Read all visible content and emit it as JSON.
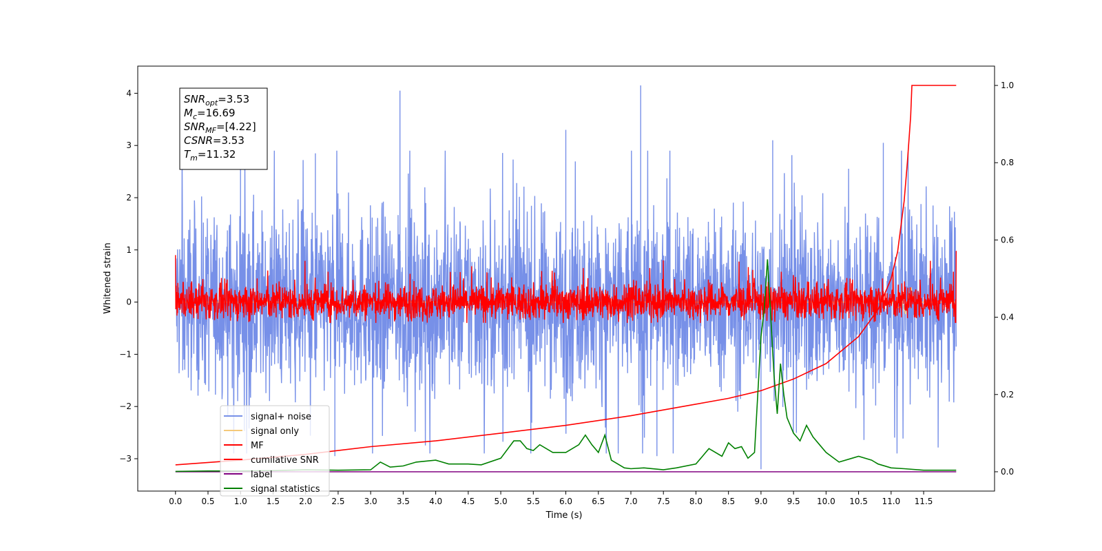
{
  "chart_data": {
    "type": "line",
    "xlabel": "Time (s)",
    "ylabel": "Whitened strain",
    "xlim": [
      -0.58,
      12.59
    ],
    "ylim": [
      -3.62,
      4.52
    ],
    "y2lim": [
      -0.05,
      1.05
    ],
    "x_ticks": [
      "0.0",
      "0.5",
      "1.0",
      "1.5",
      "2.0",
      "2.5",
      "3.0",
      "3.5",
      "4.0",
      "4.5",
      "5.0",
      "5.5",
      "6.0",
      "6.5",
      "7.0",
      "7.5",
      "8.0",
      "8.5",
      "9.0",
      "9.5",
      "10.0",
      "10.5",
      "11.0",
      "11.5"
    ],
    "y_ticks": [
      "−3",
      "−2",
      "−1",
      "0",
      "1",
      "2",
      "3",
      "4"
    ],
    "y2_ticks": [
      "0.0",
      "0.2",
      "0.4",
      "0.6",
      "0.8",
      "1.0"
    ],
    "annotation": [
      {
        "sym": "SNR",
        "sub": "opt",
        "val": "=3.53"
      },
      {
        "sym": "M",
        "sub": "c",
        "val": "=16.69"
      },
      {
        "sym": "SNR",
        "sub": "MF",
        "val": "=[4.22]"
      },
      {
        "sym": "CSNR",
        "sub": "",
        "val": "=3.53"
      },
      {
        "sym": "T",
        "sub": "m",
        "val": "=11.32"
      }
    ],
    "legend_position": "lower-left",
    "series": [
      {
        "name": "signal+ noise",
        "color": "#7790e8",
        "axis": "left",
        "style": "dense noise roughly within -2.5 to 2.5, spikes up to 4.15"
      },
      {
        "name": "signal only",
        "color": "#f5c97a",
        "axis": "left",
        "style": "near zero, small chirp near 11.3 s"
      },
      {
        "name": "MF",
        "color": "#ff0000",
        "axis": "left",
        "style": "dense noise roughly within -0.4 to 0.8"
      },
      {
        "name": "cumilative SNR",
        "color": "#ff0000",
        "axis": "right",
        "x": [
          0.0,
          1.0,
          2.0,
          3.0,
          4.0,
          5.0,
          6.0,
          7.0,
          8.0,
          8.5,
          9.0,
          9.5,
          10.0,
          10.5,
          10.8,
          11.0,
          11.1,
          11.2,
          11.25,
          11.3,
          11.32,
          12.0
        ],
        "y": [
          0.018,
          0.03,
          0.045,
          0.065,
          0.08,
          0.1,
          0.12,
          0.145,
          0.175,
          0.19,
          0.21,
          0.24,
          0.28,
          0.35,
          0.42,
          0.5,
          0.57,
          0.7,
          0.8,
          0.92,
          1.0,
          1.0
        ]
      },
      {
        "name": "label",
        "color": "#800080",
        "axis": "right",
        "x": [
          0.0,
          12.0
        ],
        "y": [
          0.0,
          0.0
        ]
      },
      {
        "name": "signal statistics",
        "color": "#008000",
        "axis": "right",
        "x": [
          0.0,
          0.5,
          1.0,
          1.5,
          2.0,
          2.5,
          3.0,
          3.15,
          3.3,
          3.5,
          3.7,
          4.0,
          4.2,
          4.5,
          4.7,
          5.0,
          5.2,
          5.3,
          5.4,
          5.5,
          5.6,
          5.8,
          6.0,
          6.2,
          6.3,
          6.4,
          6.5,
          6.6,
          6.7,
          6.9,
          7.0,
          7.2,
          7.5,
          7.7,
          8.0,
          8.1,
          8.2,
          8.4,
          8.5,
          8.6,
          8.7,
          8.8,
          8.9,
          9.0,
          9.05,
          9.1,
          9.15,
          9.2,
          9.25,
          9.3,
          9.35,
          9.4,
          9.5,
          9.6,
          9.7,
          9.8,
          9.9,
          10.0,
          10.2,
          10.4,
          10.5,
          10.7,
          10.8,
          11.0,
          11.2,
          11.5,
          12.0
        ],
        "y": [
          0.001,
          0.002,
          0.002,
          0.003,
          0.005,
          0.004,
          0.005,
          0.025,
          0.012,
          0.015,
          0.025,
          0.03,
          0.02,
          0.02,
          0.018,
          0.035,
          0.08,
          0.08,
          0.06,
          0.055,
          0.07,
          0.05,
          0.05,
          0.07,
          0.095,
          0.07,
          0.05,
          0.095,
          0.03,
          0.01,
          0.008,
          0.01,
          0.005,
          0.01,
          0.02,
          0.04,
          0.06,
          0.04,
          0.075,
          0.06,
          0.065,
          0.035,
          0.05,
          0.35,
          0.42,
          0.55,
          0.4,
          0.25,
          0.15,
          0.28,
          0.2,
          0.14,
          0.1,
          0.08,
          0.12,
          0.09,
          0.07,
          0.05,
          0.025,
          0.035,
          0.04,
          0.03,
          0.02,
          0.01,
          0.008,
          0.004,
          0.004
        ]
      }
    ]
  }
}
